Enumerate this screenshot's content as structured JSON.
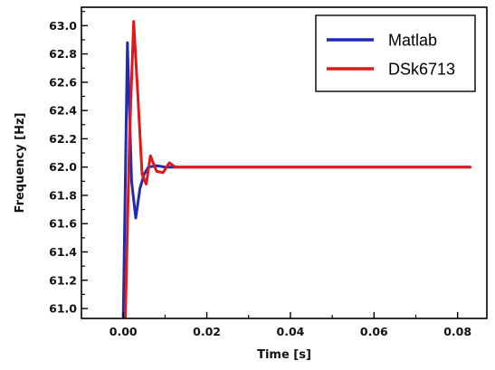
{
  "chart_data": {
    "type": "line",
    "title": "",
    "xlabel": "Time [s]",
    "ylabel": "Frequency [Hz]",
    "xlim": [
      -0.01,
      0.087
    ],
    "ylim": [
      60.93,
      63.13
    ],
    "x_ticks": [
      0.0,
      0.02,
      0.04,
      0.06,
      0.08
    ],
    "x_tick_labels": [
      "0.00",
      "0.02",
      "0.04",
      "0.06",
      "0.08"
    ],
    "y_ticks": [
      61.0,
      61.2,
      61.4,
      61.6,
      61.8,
      62.0,
      62.2,
      62.4,
      62.6,
      62.8,
      63.0
    ],
    "y_tick_labels": [
      "61.0",
      "61.2",
      "61.4",
      "61.6",
      "61.8",
      "62.0",
      "62.2",
      "62.4",
      "62.6",
      "62.8",
      "63.0"
    ],
    "grid": false,
    "legend_position": "top-right",
    "series": [
      {
        "name": "Matlab",
        "color": "#1f2bb0",
        "x": [
          0.0,
          0.001,
          0.002,
          0.003,
          0.004,
          0.005,
          0.006,
          0.008,
          0.01,
          0.012,
          0.015,
          0.02,
          0.03,
          0.04,
          0.05,
          0.06,
          0.07,
          0.083
        ],
        "y": [
          60.93,
          62.88,
          61.9,
          61.64,
          61.85,
          61.95,
          62.0,
          62.01,
          62.0,
          62.0,
          62.0,
          62.0,
          62.0,
          62.0,
          62.0,
          62.0,
          62.0,
          62.0
        ]
      },
      {
        "name": "DSk6713",
        "color": "#e01818",
        "x": [
          0.0005,
          0.0015,
          0.0025,
          0.0035,
          0.0045,
          0.0055,
          0.0065,
          0.008,
          0.0095,
          0.011,
          0.0125,
          0.015,
          0.02,
          0.03,
          0.04,
          0.05,
          0.06,
          0.07,
          0.083
        ],
        "y": [
          60.93,
          62.2,
          63.03,
          62.5,
          61.95,
          61.88,
          62.08,
          61.97,
          61.96,
          62.03,
          62.0,
          62.0,
          62.0,
          62.0,
          62.0,
          62.0,
          62.0,
          62.0,
          62.0
        ]
      }
    ]
  }
}
